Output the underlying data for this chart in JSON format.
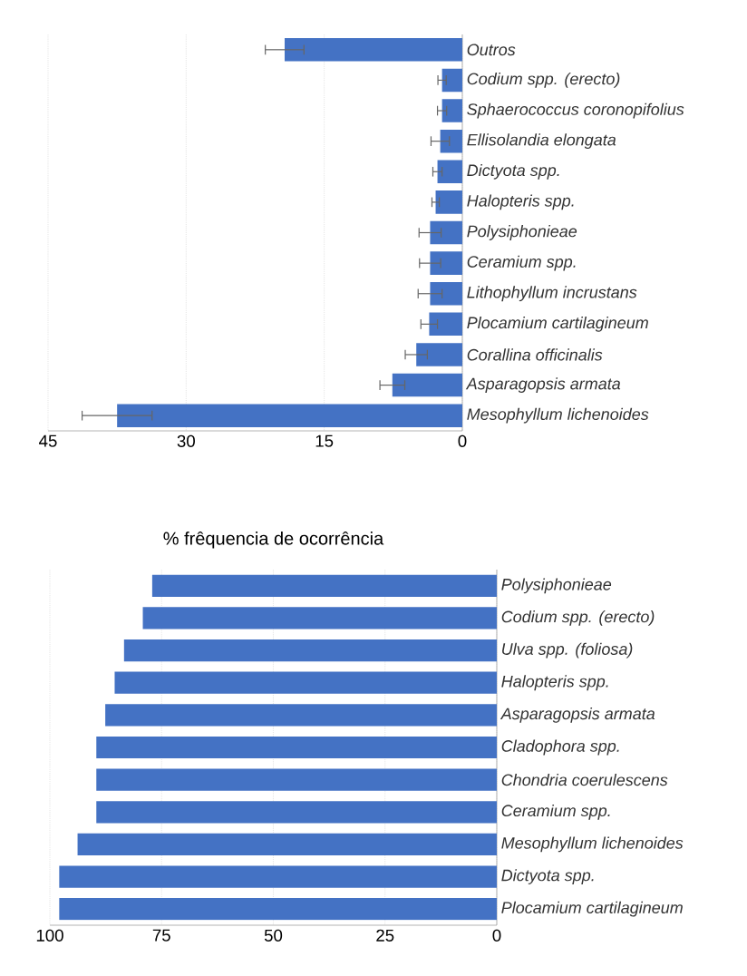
{
  "chart_data": [
    {
      "type": "bar",
      "orientation": "horizontal",
      "categories": [
        "Outros",
        "Codium spp. (erecto)",
        "Sphaerococcus coronopifolius",
        "Ellisolandia elongata",
        "Dictyota spp.",
        "Halopteris spp.",
        "Polysiphonieae",
        "Ceramium spp.",
        "Lithophyllum incrustans",
        "Plocamium cartilagineum",
        "Corallina officinalis",
        "Asparagopsis armata",
        "Mesophyllum lichenoides"
      ],
      "values": [
        19.3,
        2.2,
        2.2,
        2.4,
        2.7,
        2.9,
        3.5,
        3.5,
        3.5,
        3.6,
        5.0,
        7.6,
        37.5
      ],
      "errors": [
        2.1,
        0.45,
        0.5,
        1.0,
        0.5,
        0.4,
        1.2,
        1.15,
        1.3,
        0.9,
        1.2,
        1.35,
        3.8
      ],
      "color": "#4472c4",
      "xlim": [
        45,
        0
      ],
      "xticks": [
        45,
        30,
        15,
        0
      ],
      "grid": "x"
    },
    {
      "type": "bar",
      "orientation": "horizontal",
      "title": "% frêquencia de ocorrência",
      "categories": [
        "Polysiphonieae",
        "Codium spp. (erecto)",
        "Ulva spp. (foliosa)",
        "Halopteris spp.",
        "Asparagopsis armata",
        "Cladophora spp.",
        "Chondria coerulescens",
        "Ceramium spp.",
        "Mesophyllum lichenoides",
        "Dictyota spp.",
        "Plocamium cartilagineum"
      ],
      "values": [
        77.1,
        79.2,
        83.4,
        85.5,
        87.6,
        89.6,
        89.6,
        89.6,
        93.8,
        97.9,
        97.9
      ],
      "color": "#4472c4",
      "xlim": [
        100,
        0
      ],
      "xticks": [
        100,
        75,
        50,
        25,
        0
      ],
      "grid": "x"
    }
  ]
}
